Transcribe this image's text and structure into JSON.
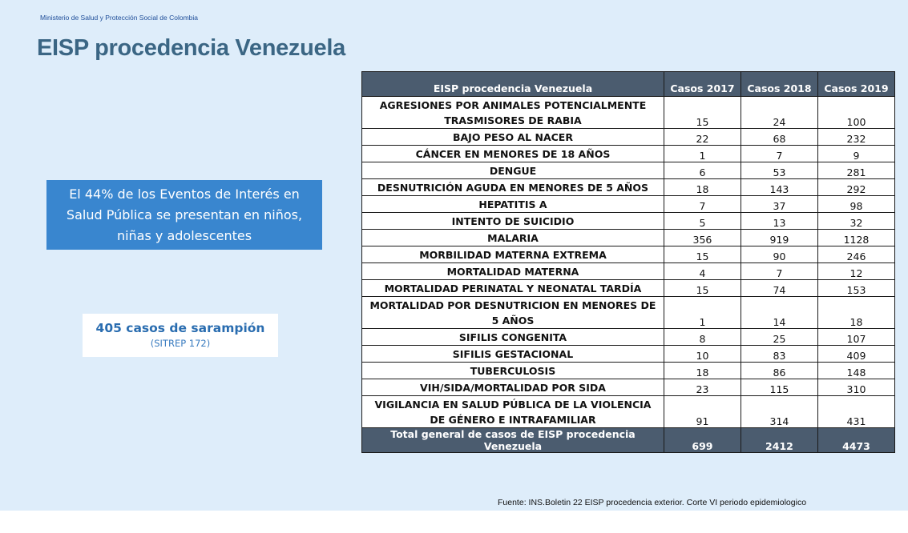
{
  "header": {
    "ministry": "Ministerio de Salud y Protección Social de Colombia",
    "title": "EISP procedencia Venezuela"
  },
  "highlight": {
    "line1": "El 44% de los Eventos de Interés en",
    "line2": "Salud Pública se presentan en niños,",
    "line3": "niñas y adolescentes"
  },
  "measles": {
    "main": "405 casos de sarampión",
    "sub": "(SITREP 172)"
  },
  "table": {
    "headers": [
      "EISP procedencia Venezuela",
      "Casos 2017",
      "Casos 2018",
      "Casos 2019"
    ],
    "rows": [
      {
        "name": "AGRESIONES POR ANIMALES POTENCIALMENTE TRASMISORES DE RABIA",
        "c2017": "15",
        "c2018": "24",
        "c2019": "100"
      },
      {
        "name": "BAJO PESO AL NACER",
        "c2017": "22",
        "c2018": "68",
        "c2019": "232"
      },
      {
        "name": "CÁNCER EN MENORES DE 18 AÑOS",
        "c2017": "1",
        "c2018": "7",
        "c2019": "9"
      },
      {
        "name": "DENGUE",
        "c2017": "6",
        "c2018": "53",
        "c2019": "281"
      },
      {
        "name": "DESNUTRICIÓN AGUDA EN MENORES DE 5 AÑOS",
        "c2017": "18",
        "c2018": "143",
        "c2019": "292"
      },
      {
        "name": "HEPATITIS A",
        "c2017": "7",
        "c2018": "37",
        "c2019": "98"
      },
      {
        "name": "INTENTO DE SUICIDIO",
        "c2017": "5",
        "c2018": "13",
        "c2019": "32"
      },
      {
        "name": "MALARIA",
        "c2017": "356",
        "c2018": "919",
        "c2019": "1128"
      },
      {
        "name": "MORBILIDAD MATERNA EXTREMA",
        "c2017": "15",
        "c2018": "90",
        "c2019": "246"
      },
      {
        "name": "MORTALIDAD MATERNA",
        "c2017": "4",
        "c2018": "7",
        "c2019": "12"
      },
      {
        "name": "MORTALIDAD PERINATAL Y NEONATAL TARDÍA",
        "c2017": "15",
        "c2018": "74",
        "c2019": "153"
      },
      {
        "name": "MORTALIDAD POR DESNUTRICION EN MENORES DE 5 AÑOS",
        "c2017": "1",
        "c2018": "14",
        "c2019": "18"
      },
      {
        "name": "SIFILIS CONGENITA",
        "c2017": "8",
        "c2018": "25",
        "c2019": "107"
      },
      {
        "name": "SIFILIS GESTACIONAL",
        "c2017": "10",
        "c2018": "83",
        "c2019": "409"
      },
      {
        "name": "TUBERCULOSIS",
        "c2017": "18",
        "c2018": "86",
        "c2019": "148"
      },
      {
        "name": "VIH/SIDA/MORTALIDAD POR SIDA",
        "c2017": "23",
        "c2018": "115",
        "c2019": "310"
      },
      {
        "name": "VIGILANCIA EN SALUD PÚBLICA DE LA VIOLENCIA DE GÉNERO E INTRAFAMILIAR",
        "c2017": "91",
        "c2018": "314",
        "c2019": "431"
      }
    ],
    "total": {
      "name": "Total general de casos de EISP procedencia Venezuela",
      "c2017": "699",
      "c2018": "2412",
      "c2019": "4473"
    }
  },
  "source": "Fuente: INS.Boletin 22 EISP procedencia exterior. Corte VI periodo epidemiologico",
  "colors": {
    "background": "#deedfa",
    "title": "#3b6684",
    "highlight_box": "#3986cf",
    "table_header": "#4b5c6f"
  }
}
